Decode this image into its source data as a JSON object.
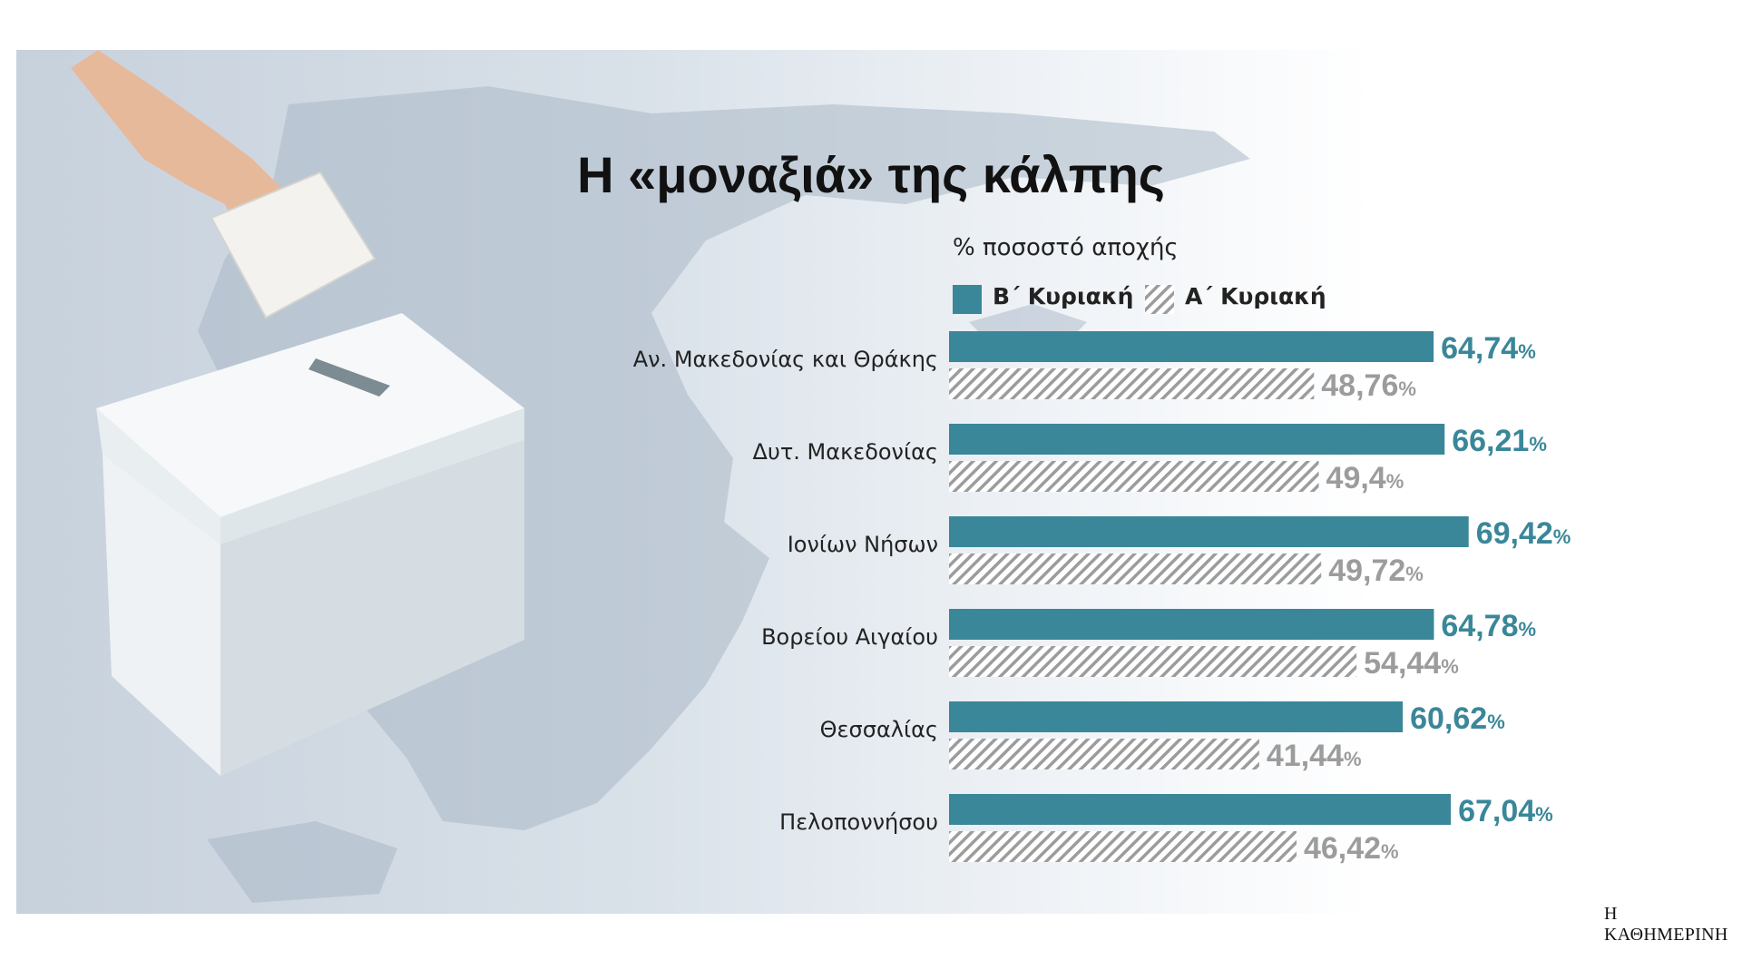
{
  "title": "Η «μοναξιά» της κάλπης",
  "subtitle": "% ποσοστό αποχής",
  "brand": "Η ΚΑΘΗΜΕΡΙΝΗ",
  "colors": {
    "series_b": "#3a8799",
    "series_a": "#9c9c9c",
    "hatch_bg": "#ffffff"
  },
  "chart_data": {
    "type": "bar",
    "orientation": "horizontal",
    "title": "Η «μοναξιά» της κάλπης",
    "subtitle": "% ποσοστό αποχής",
    "unit": "%",
    "categories": [
      "Αν. Μακεδονίας και Θράκης",
      "Δυτ. Μακεδονίας",
      "Ιονίων Νήσων",
      "Βορείου Αιγαίου",
      "Θεσσαλίας",
      "Πελοποννήσου"
    ],
    "series": [
      {
        "name": "Β΄ Κυριακή",
        "values": [
          64.74,
          66.21,
          69.42,
          64.78,
          60.62,
          67.04
        ],
        "labels": [
          "64,74",
          "66,21",
          "69,42",
          "64,78",
          "60,62",
          "67,04"
        ]
      },
      {
        "name": "Α΄ Κυριακή",
        "values": [
          48.76,
          49.4,
          49.72,
          54.44,
          41.44,
          46.42
        ],
        "labels": [
          "48,76",
          "49,4",
          "49,72",
          "54,44",
          "41,44",
          "46,42"
        ]
      }
    ],
    "legend_position": "top"
  }
}
